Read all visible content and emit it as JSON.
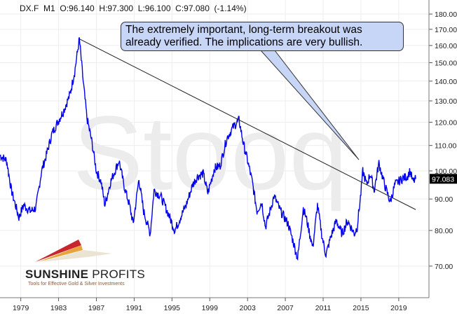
{
  "header": {
    "symbol": "DX.F",
    "interval": "M1",
    "open": "O:96.140",
    "high": "H:97.300",
    "low": "L:96.100",
    "close": "C:97.080",
    "change": "(-1.14%)"
  },
  "annotation": "The extremely important, long-term breakout was already verified. The implications are very bullish.",
  "watermark": "Stooq",
  "logo": {
    "name_bold": "SUNSHINE",
    "name_regular": "PROFITS",
    "tagline": "Tools for Effective Gold & Silver Investments"
  },
  "chart_data": {
    "type": "line",
    "title": "DX.F M1",
    "scale": "log",
    "ylim": [
      62,
      185
    ],
    "xlim": [
      1976.8,
      2022.2
    ],
    "yticks": [
      "70.00",
      "80.00",
      "90.00",
      "100.00",
      "110.00",
      "120.00",
      "130.00",
      "140.00",
      "150.00",
      "160.00",
      "170.00",
      "180.00"
    ],
    "ytick_values": [
      70,
      80,
      90,
      100,
      110,
      120,
      130,
      140,
      150,
      160,
      170,
      180
    ],
    "xticks": [
      "1979",
      "1983",
      "1987",
      "1991",
      "1995",
      "1999",
      "2003",
      "2007",
      "2011",
      "2015",
      "2019"
    ],
    "xtick_values": [
      1979,
      1983,
      1987,
      1991,
      1995,
      1999,
      2003,
      2007,
      2011,
      2015,
      2019
    ],
    "last_price_label": "97.083",
    "last_price": 97.083,
    "series_color": "#0000ee",
    "series": [
      {
        "name": "DX.F",
        "points": [
          [
            1976.8,
            106
          ],
          [
            1977.5,
            104
          ],
          [
            1978.0,
            93
          ],
          [
            1978.8,
            84
          ],
          [
            1979.3,
            88
          ],
          [
            1980.0,
            86
          ],
          [
            1980.6,
            87
          ],
          [
            1981.2,
            100
          ],
          [
            1981.7,
            106
          ],
          [
            1982.3,
            115
          ],
          [
            1982.9,
            120
          ],
          [
            1983.5,
            125
          ],
          [
            1984.2,
            133
          ],
          [
            1984.7,
            145
          ],
          [
            1985.2,
            164
          ],
          [
            1985.6,
            140
          ],
          [
            1986.0,
            122
          ],
          [
            1986.5,
            112
          ],
          [
            1987.0,
            100
          ],
          [
            1987.5,
            96
          ],
          [
            1987.9,
            88
          ],
          [
            1988.5,
            96
          ],
          [
            1989.4,
            104
          ],
          [
            1989.9,
            95
          ],
          [
            1990.5,
            88
          ],
          [
            1990.9,
            82
          ],
          [
            1991.5,
            97
          ],
          [
            1992.0,
            86
          ],
          [
            1992.7,
            79
          ],
          [
            1993.1,
            93
          ],
          [
            1993.8,
            91
          ],
          [
            1994.5,
            86
          ],
          [
            1995.3,
            80
          ],
          [
            1995.9,
            84
          ],
          [
            1996.5,
            88
          ],
          [
            1997.2,
            95
          ],
          [
            1997.7,
            98
          ],
          [
            1998.3,
            99
          ],
          [
            1998.8,
            92
          ],
          [
            1999.5,
            101
          ],
          [
            2000.1,
            102
          ],
          [
            2000.8,
            113
          ],
          [
            2001.5,
            118
          ],
          [
            2002.1,
            121
          ],
          [
            2002.6,
            110
          ],
          [
            2003.0,
            104
          ],
          [
            2003.5,
            96
          ],
          [
            2004.0,
            86
          ],
          [
            2004.5,
            89
          ],
          [
            2004.9,
            81
          ],
          [
            2005.8,
            91
          ],
          [
            2006.5,
            86
          ],
          [
            2007.3,
            82
          ],
          [
            2007.9,
            76
          ],
          [
            2008.3,
            72
          ],
          [
            2008.9,
            87
          ],
          [
            2009.2,
            84
          ],
          [
            2009.9,
            75
          ],
          [
            2010.4,
            88
          ],
          [
            2010.9,
            78
          ],
          [
            2011.3,
            73
          ],
          [
            2011.8,
            78
          ],
          [
            2012.4,
            83
          ],
          [
            2013.0,
            79
          ],
          [
            2013.6,
            83
          ],
          [
            2014.3,
            79
          ],
          [
            2014.6,
            81
          ],
          [
            2015.0,
            92
          ],
          [
            2015.2,
            100
          ],
          [
            2015.6,
            95
          ],
          [
            2016.0,
            99
          ],
          [
            2016.4,
            93
          ],
          [
            2016.9,
            103
          ],
          [
            2017.5,
            95
          ],
          [
            2018.1,
            89
          ],
          [
            2018.6,
            95
          ],
          [
            2019.3,
            97
          ],
          [
            2019.9,
            98
          ],
          [
            2020.2,
            100
          ],
          [
            2020.5,
            96
          ],
          [
            2020.8,
            97
          ]
        ]
      }
    ],
    "trendline": {
      "from": [
        1985.2,
        164
      ],
      "to": [
        2020.8,
        86.5
      ],
      "color": "#222222"
    }
  }
}
